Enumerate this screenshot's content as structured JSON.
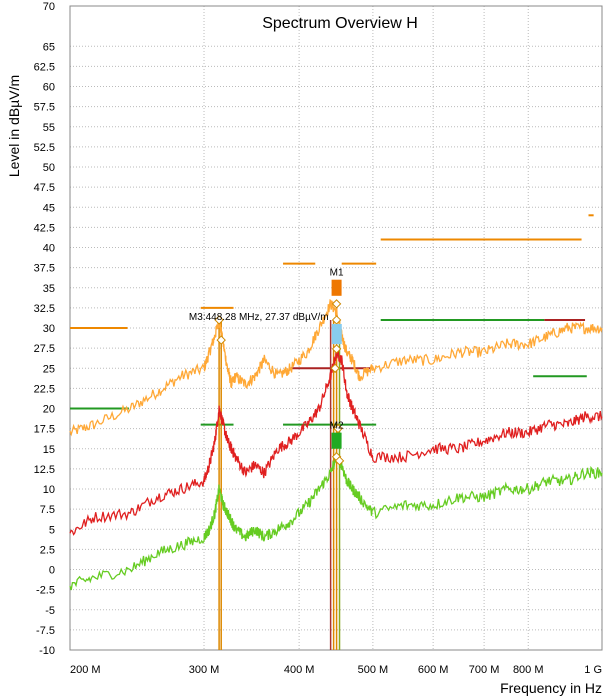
{
  "chart_data": {
    "type": "line",
    "title": "Spectrum Overview H",
    "xlabel": "Frequency in Hz",
    "ylabel": "Level in dBµV/m",
    "xscale": "log",
    "xlim": [
      200,
      1000
    ],
    "ylim": [
      -10,
      70
    ],
    "grid": true,
    "x_ticks": [
      {
        "value": 200,
        "label": "200 M"
      },
      {
        "value": 300,
        "label": "300 M"
      },
      {
        "value": 400,
        "label": "400 M"
      },
      {
        "value": 500,
        "label": "500 M"
      },
      {
        "value": 600,
        "label": "600 M"
      },
      {
        "value": 700,
        "label": "700 M"
      },
      {
        "value": 800,
        "label": "800 M"
      },
      {
        "value": 1000,
        "label": "1 G"
      }
    ],
    "y_ticks": [
      70,
      65,
      62.5,
      60,
      57.5,
      55,
      52.5,
      50,
      47.5,
      45,
      42.5,
      40,
      37.5,
      35,
      32.5,
      30,
      27.5,
      25,
      22.5,
      20,
      17.5,
      15,
      12.5,
      10,
      7.5,
      5,
      2.5,
      0,
      -2.5,
      -5,
      -7.5,
      -10
    ],
    "series": [
      {
        "color": "#ffa836",
        "x": [
          200,
          215,
          240,
          260,
          280,
          300,
          305,
          310,
          314,
          318,
          322,
          326,
          330,
          340,
          350,
          360,
          375,
          390,
          410,
          425,
          440,
          448,
          455,
          462,
          470,
          480,
          500,
          550,
          600,
          650,
          700,
          750,
          800,
          850,
          900,
          950,
          1000
        ],
        "y": [
          17,
          18,
          20,
          22,
          24,
          25,
          27,
          29,
          31,
          28,
          25,
          23,
          24,
          23,
          24,
          26,
          24,
          25,
          27,
          30,
          33,
          32,
          29,
          27,
          26,
          24,
          25,
          26,
          26,
          27,
          27,
          28,
          28,
          29,
          30,
          30,
          30
        ]
      },
      {
        "color": "#e02020",
        "x": [
          200,
          215,
          240,
          260,
          280,
          300,
          305,
          310,
          314,
          318,
          322,
          326,
          330,
          340,
          350,
          360,
          375,
          390,
          410,
          425,
          440,
          448,
          455,
          462,
          470,
          480,
          500,
          550,
          600,
          650,
          700,
          750,
          800,
          850,
          900,
          950,
          1000
        ],
        "y": [
          4.5,
          6.5,
          7,
          9,
          10,
          11,
          13,
          16,
          20,
          18,
          16,
          15,
          14,
          12,
          13,
          12,
          15,
          16,
          18,
          20,
          24,
          27,
          26,
          22,
          20,
          18,
          14,
          14,
          15,
          15,
          16,
          17,
          17,
          18,
          18,
          19,
          19
        ]
      },
      {
        "color": "#66cc22",
        "x": [
          200,
          215,
          240,
          260,
          280,
          300,
          305,
          310,
          314,
          318,
          322,
          326,
          330,
          340,
          350,
          360,
          375,
          390,
          410,
          425,
          440,
          448,
          455,
          462,
          470,
          480,
          500,
          550,
          600,
          650,
          700,
          750,
          800,
          850,
          900,
          950,
          1000
        ],
        "y": [
          -2,
          -1,
          0,
          2,
          3,
          4,
          5,
          7,
          10,
          8,
          7,
          6,
          5,
          4,
          5,
          4,
          5,
          6,
          8,
          10,
          12,
          14,
          13,
          11,
          10,
          9,
          7,
          8,
          8,
          9,
          9,
          10,
          10,
          11,
          11,
          12,
          12
        ]
      }
    ],
    "limit_lines": [
      {
        "color": "#ee8800",
        "x": [
          200,
          238
        ],
        "y": 30
      },
      {
        "color": "#ee8800",
        "x": [
          297,
          328
        ],
        "y": 32.5
      },
      {
        "color": "#ee8800",
        "x": [
          381,
          420
        ],
        "y": 38
      },
      {
        "color": "#ee8800",
        "x": [
          455,
          505
        ],
        "y": 38
      },
      {
        "color": "#ee8800",
        "x": [
          512,
          940
        ],
        "y": 41
      },
      {
        "color": "#ee8800",
        "x": [
          960,
          975
        ],
        "y": 44
      },
      {
        "color": "#229922",
        "x": [
          200,
          239
        ],
        "y": 20
      },
      {
        "color": "#229922",
        "x": [
          297,
          328
        ],
        "y": 18
      },
      {
        "color": "#229922",
        "x": [
          381,
          505
        ],
        "y": 18
      },
      {
        "color": "#229922",
        "x": [
          512,
          840
        ],
        "y": 31
      },
      {
        "color": "#229922",
        "x": [
          812,
          955
        ],
        "y": 24
      },
      {
        "color": "#aa2222",
        "x": [
          390,
          500
        ],
        "y": 25
      },
      {
        "color": "#aa2222",
        "x": [
          840,
          950
        ],
        "y": 31
      }
    ],
    "markers": [
      {
        "label": "M1",
        "x": 448,
        "color": "#ee7700",
        "y_top": 36,
        "y_bottom": 34
      },
      {
        "label": "M2",
        "x": 448,
        "color": "#22aa22",
        "y_top": 17,
        "y_bottom": 15
      },
      {
        "label": "M3:448.28 MHz, 27.37 dBµV/m",
        "x": 448.28,
        "color": "#88ccee",
        "y_top": 30.5,
        "y_bottom": 28
      }
    ]
  }
}
